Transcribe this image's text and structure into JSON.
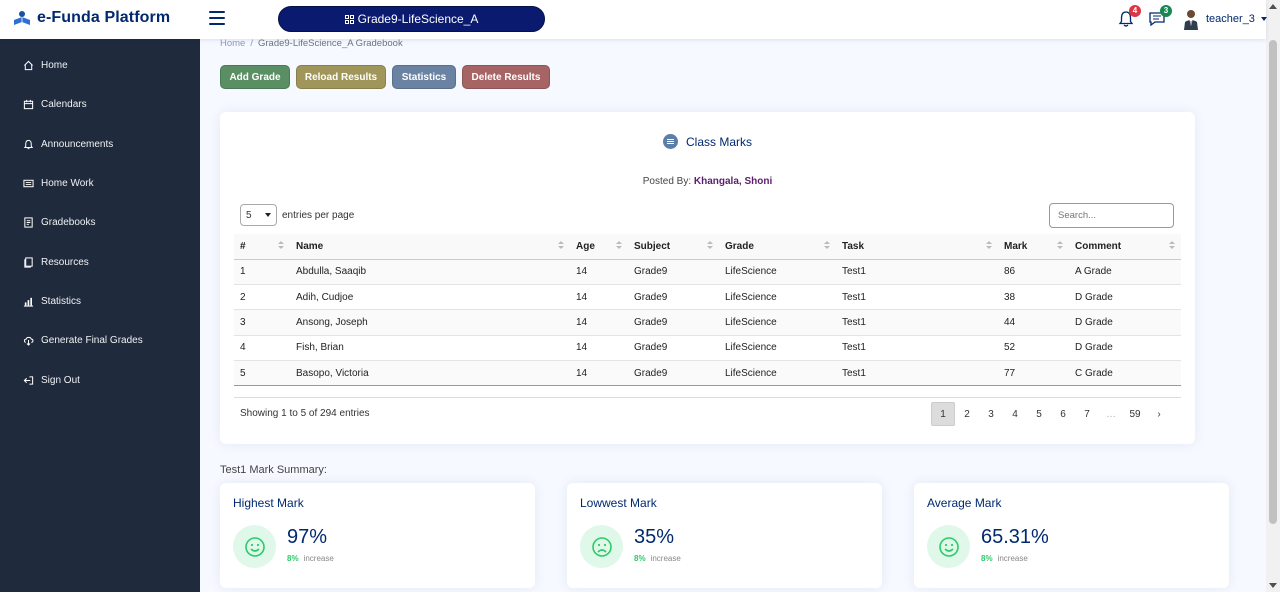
{
  "header": {
    "logo_text": "e-Funda Platform",
    "class_name": "Grade9-LifeScience_A",
    "notifications_count": "4",
    "messages_count": "3",
    "user_name": "teacher_3"
  },
  "sidebar": {
    "items": [
      {
        "label": "Home",
        "icon": "home-icon"
      },
      {
        "label": "Calendars",
        "icon": "calendar-icon"
      },
      {
        "label": "Announcements",
        "icon": "bell-icon"
      },
      {
        "label": "Home Work",
        "icon": "homework-icon"
      },
      {
        "label": "Gradebooks",
        "icon": "gradebook-icon"
      },
      {
        "label": "Resources",
        "icon": "resources-icon"
      },
      {
        "label": "Statistics",
        "icon": "bar-chart-icon"
      },
      {
        "label": "Generate Final Grades",
        "icon": "generate-icon"
      },
      {
        "label": "Sign Out",
        "icon": "sign-out-icon"
      }
    ]
  },
  "breadcrumb": {
    "home": "Home",
    "separator": "/",
    "current": "Grade9-LifeScience_A Gradebook"
  },
  "actions": {
    "add_grade": "Add Grade",
    "reload_results": "Reload Results",
    "statistics": "Statistics",
    "delete_results": "Delete Results",
    "colors": {
      "add": "#5a8f63",
      "reload": "#a1965a",
      "stats": "#6b83a3",
      "delete": "#a66464"
    }
  },
  "card": {
    "title": "Class Marks",
    "posted_by_label": "Posted By:",
    "posted_by_name": "Khangala, Shoni",
    "per_page_value": "5",
    "per_page_label": "entries per page",
    "search_placeholder": "Search...",
    "columns": [
      "#",
      "Name",
      "Age",
      "Subject",
      "Grade",
      "Task",
      "Mark",
      "Comment"
    ],
    "rows": [
      [
        "1",
        "Abdulla, Saaqib",
        "14",
        "Grade9",
        "LifeScience",
        "Test1",
        "86",
        "A Grade"
      ],
      [
        "2",
        "Adih, Cudjoe",
        "14",
        "Grade9",
        "LifeScience",
        "Test1",
        "38",
        "D Grade"
      ],
      [
        "3",
        "Ansong, Joseph",
        "14",
        "Grade9",
        "LifeScience",
        "Test1",
        "44",
        "D Grade"
      ],
      [
        "4",
        "Fish, Brian",
        "14",
        "Grade9",
        "LifeScience",
        "Test1",
        "52",
        "D Grade"
      ],
      [
        "5",
        "Basopo, Victoria",
        "14",
        "Grade9",
        "LifeScience",
        "Test1",
        "77",
        "C Grade"
      ]
    ],
    "showing_text": "Showing 1 to 5 of 294 entries",
    "pages": [
      "1",
      "2",
      "3",
      "4",
      "5",
      "6",
      "7",
      "…",
      "59",
      "›"
    ]
  },
  "summary": {
    "title": "Test1 Mark Summary:",
    "stats": [
      {
        "title": "Highest Mark",
        "value": "97%",
        "change": "8%",
        "change_label": "increase",
        "icon": "smile-icon"
      },
      {
        "title": "Lowwest Mark",
        "value": "35%",
        "change": "8%",
        "change_label": "increase",
        "icon": "frown-icon"
      },
      {
        "title": "Average Mark",
        "value": "65.31%",
        "change": "8%",
        "change_label": "increase",
        "icon": "smile-icon"
      }
    ]
  }
}
